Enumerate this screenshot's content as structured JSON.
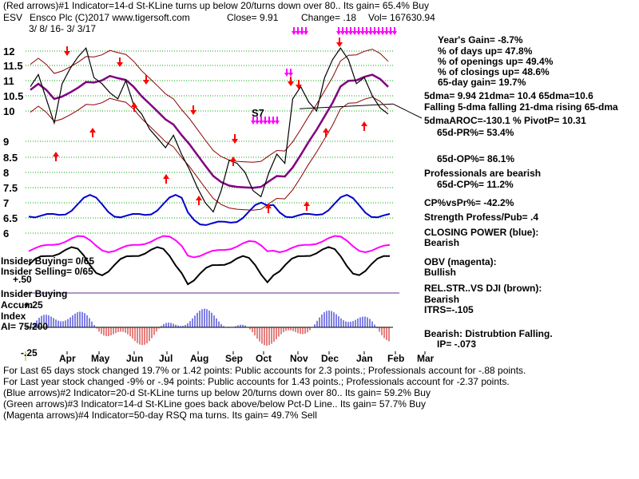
{
  "header": {
    "line1": "(Red arrows)#1 Indicator=14-d St-KLine turns up below 20/turns down over 80.. Its gain= 65.4% Buy",
    "ticker": "ESV",
    "company": "Ensco Plc  (C)2017 www.tigersoft.com",
    "close": "Close=  9.91",
    "change": "Change= .18",
    "vol": "Vol= 167630.94",
    "date_range": "3/ 8/ 16-  3/ 3/17"
  },
  "stats": {
    "years_gain": "Year's Gain= -8.7%",
    "days_up": "% of days up= 47.8%",
    "openings_up": "% of openings up= 49.4%",
    "closings_up": "% of closings up= 48.6%",
    "gain65": "65-day gain= 19.7%",
    "dma": "5dma= 9.94 21dma= 10.4 65dma=10.6",
    "falling": "Falling 5-dma falling 21-dma rising 65-dma",
    "aroc": "5dmaAROC=-130.1 %  PivotP= 10.31",
    "pr": "65d-PR%= 53.4%",
    "op": "65d-OP%= 86.1%",
    "pros": "Professionals are bearish",
    "cp": "65d-CP%= 11.2%",
    "cpvspr": "CP%vsPr%= -42.2%",
    "strength": "Strength Profess/Pub= .4",
    "closing_power_label": "CLOSING POWER (blue):",
    "closing_power_value": "Bearish",
    "obv_label": "OBV (magenta):",
    "obv_value": "Bullish",
    "relstr_label": "REL.STR..VS DJI (brown):",
    "relstr_value": "Bearish",
    "itrs": "ITRS=-.105",
    "dist_label": "Bearish: Distrubtion Falling.",
    "ip": "IP= -.073"
  },
  "panel_labels": {
    "insider_buying": "Insider Buying= 0/65",
    "insider_selling": "Insider Selling= 0/65",
    "plus50": "+.50",
    "insider_buying2": "Insider Buying",
    "accum": "Accum",
    "plus25": "+.25",
    "index": "Index",
    "ai": "AI= 75/200",
    "minus25": "-.25",
    "s7": "S7"
  },
  "footer": {
    "l1": "For Last 65 days stock changed  19.7% or  1.42 points:  Public accounts for  2.3 points.;  Professionals account for -.88 points.",
    "l2": "For Last year stock changed -9% or -.94 points:  Public accounts for  1.43 points.;  Professionals account for -2.37 points.",
    "l3": "(Blue arrows)#2 Indicator=20-d St-KLine turns up below 20/turns down over 80.. Its gain= 59.2% Buy",
    "l4": "(Green arrows)#3 Indicator=14-d St-KLine goes back above/below Pct-D Line.. Its gain= 57.7% Buy",
    "l5": "(Magenta arrows)#4 Indicator=50-day RSQ ma turns. Its gain= 49.7% Sell"
  },
  "colors": {
    "price": "#000000",
    "ma65": "#800080",
    "band": "#8b0000",
    "closing_power": "#0000cc",
    "obv": "#ff00ff",
    "relstr": "#000000",
    "grid": "#00aa00",
    "accum_pos": "#0000cc",
    "accum_neg": "#cc0000",
    "red_arrow": "#ff0000",
    "magenta_arrow": "#ff00ff"
  },
  "chart_data": {
    "type": "line",
    "title": "ESV",
    "yticks": [
      "12",
      "11.5",
      "11",
      "10.5",
      "10",
      "9",
      "8.5",
      "8",
      "7.5",
      "7",
      "6.5",
      "6"
    ],
    "y_values": [
      12,
      11.5,
      11,
      10.5,
      10,
      9,
      8.5,
      8,
      7.5,
      7,
      6.5,
      6
    ],
    "xticks": [
      "Apr",
      "May",
      "Jun",
      "Jul",
      "Aug",
      "Sep",
      "Oct",
      "Nov",
      "Dec",
      "Jan",
      "Feb",
      "Mar"
    ],
    "pivot": 10.31,
    "series": [
      {
        "values": [
          10.8,
          11.2,
          10.4,
          9.6,
          10.9,
          11.4,
          11.8,
          12.1,
          11.1,
          10.9,
          10.6,
          10.4,
          11.0,
          10.2,
          9.9,
          9.4,
          9.1,
          8.8,
          9.2,
          8.6,
          8.1,
          7.5,
          7.0,
          6.7,
          7.4,
          8.4,
          8.3,
          8.0,
          7.4,
          7.2,
          8.0,
          8.6,
          8.3,
          10.4,
          10.8,
          10.3,
          10.0,
          11.1,
          11.7,
          12.1,
          11.7,
          10.9,
          11.1,
          10.5,
          10.1,
          9.9
        ]
      }
    ]
  }
}
